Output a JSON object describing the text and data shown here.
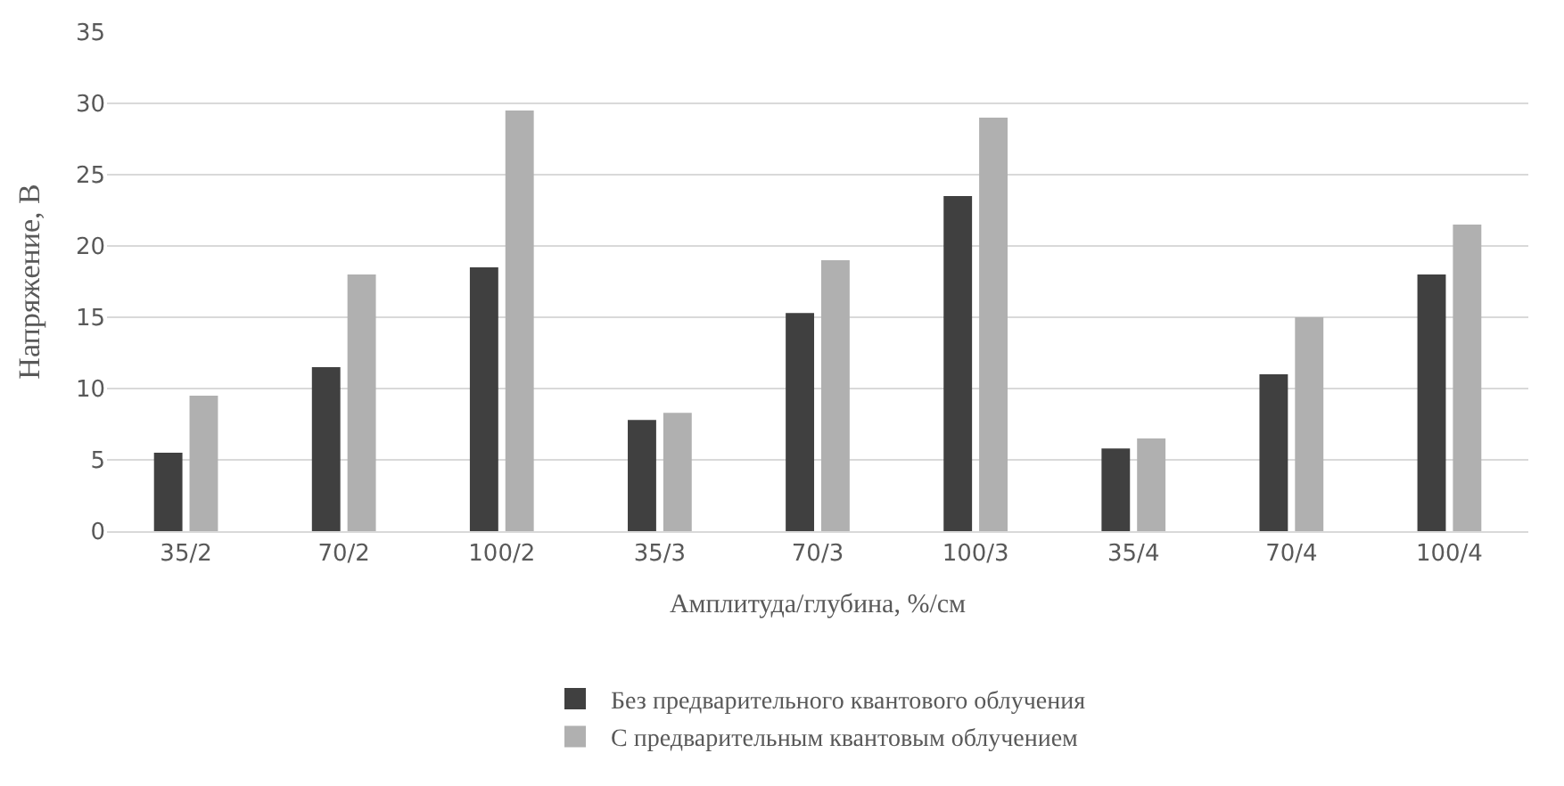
{
  "chart_data": {
    "type": "bar",
    "xlabel": "Амплитуда/глубина, %/см",
    "ylabel": "Напряжение, В",
    "categories": [
      "35/2",
      "70/2",
      "100/2",
      "35/3",
      "70/3",
      "100/3",
      "35/4",
      "70/4",
      "100/4"
    ],
    "series": [
      {
        "name": "Без предварительного квантового облучения",
        "color": "#404040",
        "values": [
          5.5,
          11.5,
          18.5,
          7.8,
          15.3,
          23.5,
          5.8,
          11,
          18
        ]
      },
      {
        "name": "С предварительным квантовым облучением",
        "color": "#b0b0b0",
        "values": [
          9.5,
          18,
          29.5,
          8.3,
          19,
          29,
          6.5,
          15,
          21.5
        ]
      }
    ],
    "ylim": [
      0,
      35
    ],
    "yticks": [
      0,
      5,
      10,
      15,
      20,
      25,
      30,
      35
    ],
    "grid": "y",
    "legend": "bottom"
  }
}
